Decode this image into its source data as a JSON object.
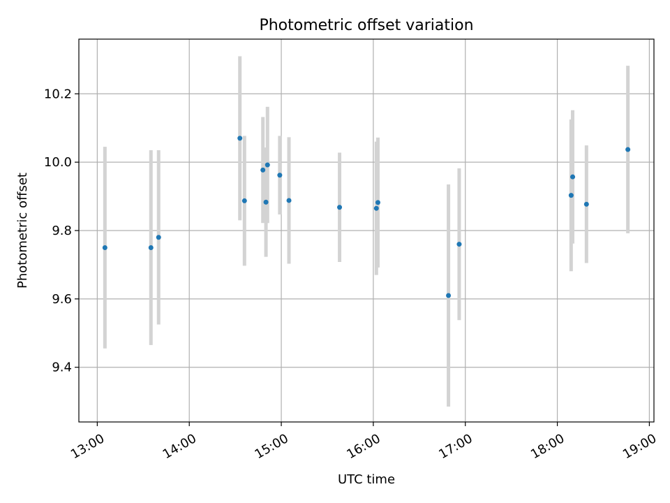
{
  "chart_data": {
    "type": "scatter",
    "title": "Photometric offset variation",
    "xlabel": "UTC time",
    "ylabel": "Photometric offset",
    "x_ticks": [
      "13:00",
      "14:00",
      "15:00",
      "16:00",
      "17:00",
      "18:00",
      "19:00"
    ],
    "y_ticks": [
      "9.4",
      "9.6",
      "9.8",
      "10.0",
      "10.2"
    ],
    "xlim": [
      "12:48",
      "19:03"
    ],
    "ylim": [
      9.24,
      10.36
    ],
    "grid": true,
    "colors": {
      "points": "#1f77b4",
      "errorbars": "#d3d3d3",
      "grid": "#b0b0b0"
    },
    "points": [
      {
        "t": "13:05",
        "y": 9.75,
        "err": 0.295
      },
      {
        "t": "13:35",
        "y": 9.75,
        "err": 0.285
      },
      {
        "t": "13:40",
        "y": 9.78,
        "err": 0.255
      },
      {
        "t": "14:33",
        "y": 10.07,
        "err": 0.24
      },
      {
        "t": "14:36",
        "y": 9.887,
        "err": 0.19
      },
      {
        "t": "14:48",
        "y": 9.977,
        "err": 0.155
      },
      {
        "t": "14:50",
        "y": 9.883,
        "err": 0.16
      },
      {
        "t": "14:51",
        "y": 9.992,
        "err": 0.17
      },
      {
        "t": "14:59",
        "y": 9.962,
        "err": 0.115
      },
      {
        "t": "15:05",
        "y": 9.888,
        "err": 0.185
      },
      {
        "t": "15:38",
        "y": 9.868,
        "err": 0.16
      },
      {
        "t": "16:02",
        "y": 9.865,
        "err": 0.195
      },
      {
        "t": "16:03",
        "y": 9.882,
        "err": 0.19
      },
      {
        "t": "16:49",
        "y": 9.61,
        "err": 0.325
      },
      {
        "t": "16:56",
        "y": 9.76,
        "err": 0.222
      },
      {
        "t": "18:09",
        "y": 9.903,
        "err": 0.222
      },
      {
        "t": "18:10",
        "y": 9.957,
        "err": 0.195
      },
      {
        "t": "18:19",
        "y": 9.877,
        "err": 0.172
      },
      {
        "t": "18:46",
        "y": 10.037,
        "err": 0.245
      }
    ]
  }
}
